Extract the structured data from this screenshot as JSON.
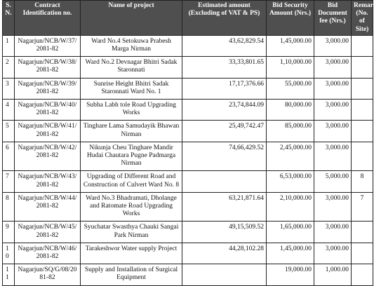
{
  "table": {
    "columns": [
      "S. N.",
      "Contract Identification no.",
      "Name of project",
      "Estimated amount (Excluding of VAT & PS)",
      "Bid Security Amount (Nrs.)",
      "Bid Document fee (Nrs.)",
      "Remarks (No. of Site)"
    ],
    "rows": [
      [
        "1",
        "Nagarjun/NCB/W/37/2081-82",
        "Ward No.4 Setokuwa Prabesh Marga Nirman",
        "43,62,829.54",
        "1,45,000.00",
        "3,000.00",
        null
      ],
      [
        "2",
        "Nagarjun/NCB/W/38/2081-82",
        "Ward No.2 Devnagar Bhitri Sadak Staronnati",
        "33,33,801.65",
        "1,10,000.00",
        "3,000.00",
        null
      ],
      [
        "3",
        "Nagarjun/NCB/W/39/2081-82",
        "Sunrise Height Bhitri Sadak Staronnati Ward No. 1",
        "17,17,376.66",
        "55,000.00",
        "3,000.00",
        null
      ],
      [
        "4",
        "Nagarjun/NCB/W/40/2081-82",
        "Subha Labh tole Road Upgrading Works",
        "23,74,844.09",
        "80,000.00",
        "3,000.00",
        null
      ],
      [
        "5",
        "Nagarjun/NCB/W/41/2081-82",
        "Tinghare Lama Samudayik Bhawan Nirman",
        "25,49,742.47",
        "85,000.00",
        "3,000.00",
        null
      ],
      [
        "6",
        "Nagarjun/NCB/W/42/2081-82",
        "Nikunja Cheu Tinghare Mandir Hudai Chautara Pugne Padmarga Nirman",
        "74,66,429.52",
        "2,45,000.00",
        "3,000.00",
        null
      ],
      [
        "7",
        "Nagarjun/NCB/W/43/2081-82",
        "Upgrading of Different Road and Construction of Culvert Ward No. 8",
        null,
        "6,53,000.00",
        "5,000.00",
        "8"
      ],
      [
        "8",
        "Nagarjun/NCB/W/44/2081-82",
        "Ward No.3 Bhadramati, Dholange and Ratomate Road Upgrading Works",
        "63,21,871.64",
        "2,10,000.00",
        "3,000.00",
        "7"
      ],
      [
        "9",
        "Nagarjun/NCB/W/45/2081-82",
        "Syuchatar Swasthya Chauki Sangai Park Nirman",
        "49,15,509.52",
        "1,65,000.00",
        "3,000.00",
        null
      ],
      [
        "10",
        "Nagarjun/NCB/W/46/2081-82",
        "Tarakeshwor Water supply Project",
        "44,28,102.28",
        "1,45,000.00",
        "3,000.00",
        null
      ],
      [
        "11",
        "Nagarjun/SQ/G/08/2081-82",
        "Supply and Installation of Surgical Equipment",
        null,
        "19,000.00",
        "1,000.00",
        null
      ]
    ]
  }
}
